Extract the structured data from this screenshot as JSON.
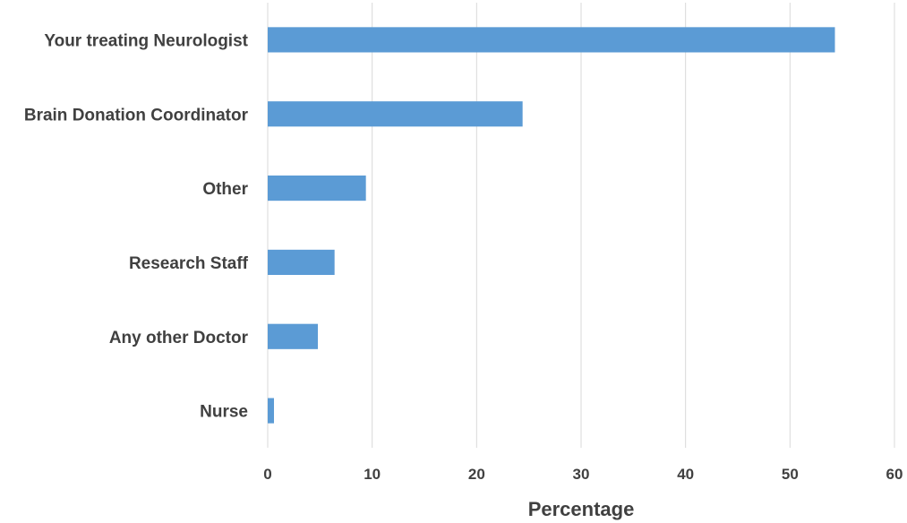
{
  "chart_data": {
    "type": "bar",
    "orientation": "horizontal",
    "categories": [
      "Your treating Neurologist",
      "Brain Donation Coordinator",
      "Other",
      "Research Staff",
      "Any other Doctor",
      "Nurse"
    ],
    "values": [
      54.3,
      24.4,
      9.4,
      6.4,
      4.8,
      0.6
    ],
    "xlabel": "Percentage",
    "xlim": [
      0,
      60
    ],
    "xticks": [
      "0",
      "10",
      "20",
      "30",
      "40",
      "50",
      "60"
    ],
    "grid": "vertical",
    "bar_color": "#5b9bd5"
  }
}
